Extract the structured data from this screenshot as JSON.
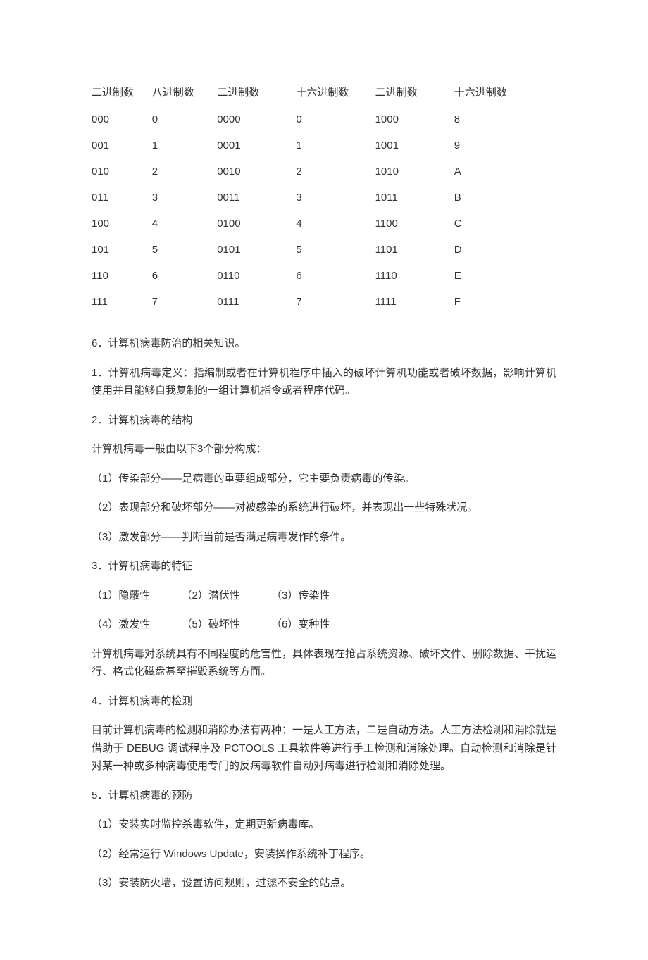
{
  "table": {
    "headers": [
      "二进制数",
      "八进制数",
      "二进制数",
      "十六进制数",
      "二进制数",
      "十六进制数"
    ],
    "rows": [
      [
        "000",
        "0",
        "0000",
        "0",
        "1000",
        "8"
      ],
      [
        "001",
        "1",
        "0001",
        "1",
        "1001",
        "9"
      ],
      [
        "010",
        "2",
        "0010",
        "2",
        "1010",
        "A"
      ],
      [
        "011",
        "3",
        "0011",
        "3",
        "1011",
        "B"
      ],
      [
        "100",
        "4",
        "0100",
        "4",
        "1100",
        "C"
      ],
      [
        "101",
        "5",
        "0101",
        "5",
        "1101",
        "D"
      ],
      [
        "110",
        "6",
        "0110",
        "6",
        "1110",
        "E"
      ],
      [
        "111",
        "7",
        "0111",
        "7",
        "1111",
        "F"
      ]
    ]
  },
  "content": {
    "p0": "6．计算机病毒防治的相关知识。",
    "p1": "1．计算机病毒定义：指编制或者在计算机程序中插入的破坏计算机功能或者破坏数据，影响计算机使用并且能够自我复制的一组计算机指令或者程序代码。",
    "p2": "2．计算机病毒的结构",
    "p3": "计算机病毒一般由以下3个部分构成：",
    "p4": "（1）传染部分——是病毒的重要组成部分，它主要负责病毒的传染。",
    "p5": "（2）表现部分和破坏部分——对被感染的系统进行破坏，并表现出一些特殊状况。",
    "p6": "（3）激发部分——判断当前是否满足病毒发作的条件。",
    "p7": "3．计算机病毒的特征",
    "traits1": [
      "（1）隐蔽性",
      "（2）潜伏性",
      "（3）传染性"
    ],
    "traits2": [
      "（4）激发性",
      "（5）破坏性",
      "（6）变种性"
    ],
    "p8": "计算机病毒对系统具有不同程度的危害性，具体表现在抢占系统资源、破坏文件、删除数据、干扰运行、格式化磁盘甚至摧毁系统等方面。",
    "p9": "4．计算机病毒的检测",
    "p10": "目前计算机病毒的检测和消除办法有两种：一是人工方法，二是自动方法。人工方法检测和消除就是借助于 DEBUG 调试程序及 PCTOOLS  工具软件等进行手工检测和消除处理。自动检测和消除是针对某一种或多种病毒使用专门的反病毒软件自动对病毒进行检测和消除处理。",
    "p11": "5．计算机病毒的预防",
    "p12": "（1）安装实时监控杀毒软件，定期更新病毒库。",
    "p13": "（2）经常运行 Windows Update，安装操作系统补丁程序。",
    "p14": "（3）安装防火墙，设置访问规则，过滤不安全的站点。"
  }
}
